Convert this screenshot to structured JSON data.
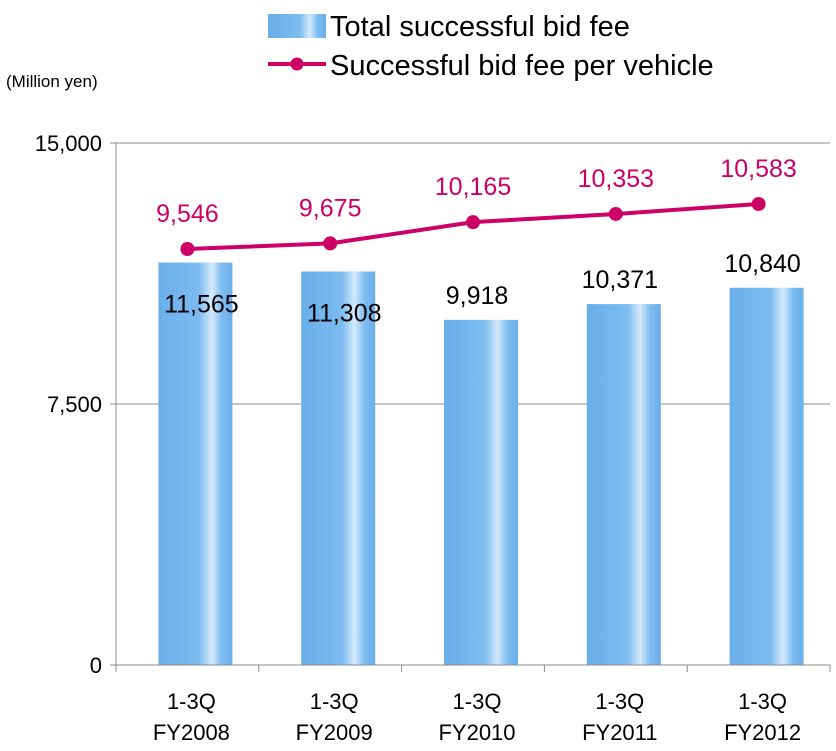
{
  "chart_data": {
    "type": "bar",
    "unit_label": "(Million yen)",
    "categories": [
      [
        "1-3Q",
        "FY2008"
      ],
      [
        "1-3Q",
        "FY2009"
      ],
      [
        "1-3Q",
        "FY2010"
      ],
      [
        "1-3Q",
        "FY2011"
      ],
      [
        "1-3Q",
        "FY2012"
      ]
    ],
    "ylim": [
      0,
      15000
    ],
    "yticks": [
      "0",
      "7,500",
      "15,000"
    ],
    "ytick_values": [
      0,
      7500,
      15000
    ],
    "grid": true,
    "legend_position": "top-right",
    "series": [
      {
        "name": "Total successful bid fee",
        "type": "bar",
        "values": [
          11565,
          11308,
          9918,
          10371,
          10840
        ],
        "labels": [
          "11,565",
          "11,308",
          "9,918",
          "10,371",
          "10,840"
        ],
        "color": "#73b5ee"
      },
      {
        "name": "Successful bid fee per vehicle",
        "type": "line",
        "values": [
          9546,
          9675,
          10165,
          10353,
          10583
        ],
        "labels": [
          "9,546",
          "9,675",
          "10,165",
          "10,353",
          "10,583"
        ],
        "color": "#cc0066"
      }
    ]
  }
}
